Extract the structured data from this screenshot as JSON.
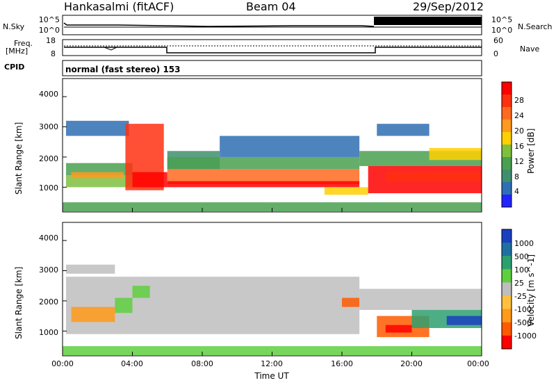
{
  "header": {
    "station": "Hankasalmi (fitACF)",
    "beam": "Beam 04",
    "date": "29/Sep/2012"
  },
  "noise_panel": {
    "left_label": "N.Sky",
    "right_label": "N.Search",
    "left_ticks": [
      "10^5",
      "10^0"
    ],
    "right_ticks": [
      "10^5",
      "10^0"
    ]
  },
  "freq_panel": {
    "left_label_1": "Freq.",
    "left_label_2": "[MHz]",
    "right_label": "Nave",
    "left_ticks": [
      "18",
      "8"
    ],
    "right_ticks": [
      "60",
      "0"
    ]
  },
  "cpid": {
    "label": "CPID",
    "text": "normal (fast stereo) 153"
  },
  "colors": {
    "power_scale": [
      "#2323ff",
      "#2f6fb3",
      "#3f8f6f",
      "#4aa050",
      "#7fbf3f",
      "#ffd000",
      "#ff9a20",
      "#ff6a20",
      "#ff3010",
      "#ff0000"
    ],
    "velocity_scale": [
      "#ff0000",
      "#ff5a00",
      "#ff9a1a",
      "#ffc040",
      "#bebebe",
      "#5fcf3f",
      "#2ea070",
      "#1f70a0",
      "#1a3fc0"
    ]
  },
  "chart_data": [
    {
      "type": "heatmap",
      "title": "Power",
      "xlabel": "",
      "ylabel": "Slant Range [km]",
      "xlim": [
        "00:00",
        "24:00"
      ],
      "ylim": [
        180,
        4600
      ],
      "yticks": [
        "1000",
        "2000",
        "3000",
        "4000"
      ],
      "colorbar": {
        "label": "Power [dB]",
        "ticks": [
          "28",
          "24",
          "20",
          "16",
          "12",
          "8",
          "4"
        ],
        "range": [
          0,
          30
        ]
      },
      "features": [
        {
          "time_h": [
            0,
            3.5
          ],
          "range_km": [
            1000,
            1500
          ],
          "value": "green/blue, 8-16 dB"
        },
        {
          "time_h": [
            3.5,
            6
          ],
          "range_km": [
            900,
            3000
          ],
          "value": "descending red arcs, 20-30 dB"
        },
        {
          "time_h": [
            6,
            17
          ],
          "range_km": [
            1000,
            1600
          ],
          "value": "red/orange band, 20-28 dB"
        },
        {
          "time_h": [
            17,
            24
          ],
          "range_km": [
            800,
            2200
          ],
          "value": "strong red region, 24-30 dB"
        }
      ]
    },
    {
      "type": "heatmap",
      "title": "Velocity",
      "xlabel": "Time UT",
      "ylabel": "Slant Range [km]",
      "xlim": [
        "00:00",
        "24:00"
      ],
      "ylim": [
        180,
        4600
      ],
      "xticks": [
        "00:00",
        "04:00",
        "08:00",
        "12:00",
        "16:00",
        "20:00",
        "00:00"
      ],
      "yticks": [
        "1000",
        "2000",
        "3000",
        "4000"
      ],
      "colorbar": {
        "label": "Velocity [m s^-1]",
        "ticks": [
          "1000",
          "500",
          "100",
          "25",
          "-25",
          "-100",
          "-500",
          "-1000"
        ],
        "range": [
          -1000,
          1000
        ]
      },
      "features": [
        {
          "time_h": [
            0,
            17
          ],
          "range_km": [
            900,
            2800
          ],
          "value": "grey, -25 to 25 m/s"
        },
        {
          "time_h": [
            0,
            3
          ],
          "range_km": [
            1300,
            1800
          ],
          "value": "orange, -100 to -500 m/s"
        },
        {
          "time_h": [
            18,
            21
          ],
          "range_km": [
            800,
            1500
          ],
          "value": "orange/red, -500 m/s"
        },
        {
          "time_h": [
            20,
            24
          ],
          "range_km": [
            1100,
            1700
          ],
          "value": "green/blue, 100-1000 m/s"
        }
      ]
    }
  ]
}
